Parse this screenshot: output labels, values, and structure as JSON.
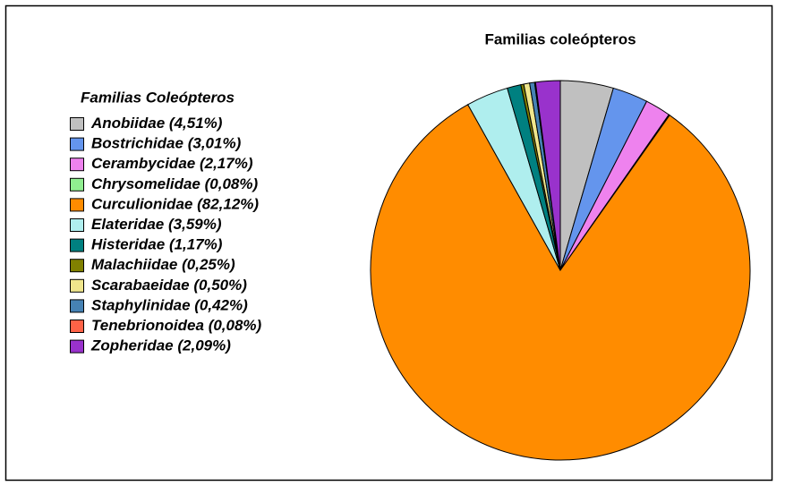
{
  "chart_data": {
    "type": "pie",
    "title": "Familias coleópteros",
    "legend_title": "Familias Coleópteros",
    "legend_position": "left",
    "categories": [
      "Anobiidae",
      "Bostrichidae",
      "Cerambycidae",
      "Chrysomelidae",
      "Curculionidae",
      "Elateridae",
      "Histeridae",
      "Malachiidae",
      "Scarabaeidae",
      "Staphylinidae",
      "Tenebrionoidea",
      "Zopheridae"
    ],
    "values": [
      4.51,
      3.01,
      2.17,
      0.08,
      82.12,
      3.59,
      1.17,
      0.25,
      0.5,
      0.42,
      0.08,
      2.09
    ],
    "value_labels": [
      "(4,51%)",
      "(3,01%)",
      "(2,17%)",
      "(0,08%)",
      "(82,12%)",
      "(3,59%)",
      "(1,17%)",
      "(0,25%)",
      "(0,50%)",
      "(0,42%)",
      "(0,08%)",
      "(2,09%)"
    ],
    "colors": [
      "#c0c0c0",
      "#6495ed",
      "#ee82ee",
      "#90ee90",
      "#ff8c00",
      "#afeeee",
      "#008080",
      "#808000",
      "#f0e68c",
      "#4682b4",
      "#ff6347",
      "#9932cc"
    ]
  }
}
